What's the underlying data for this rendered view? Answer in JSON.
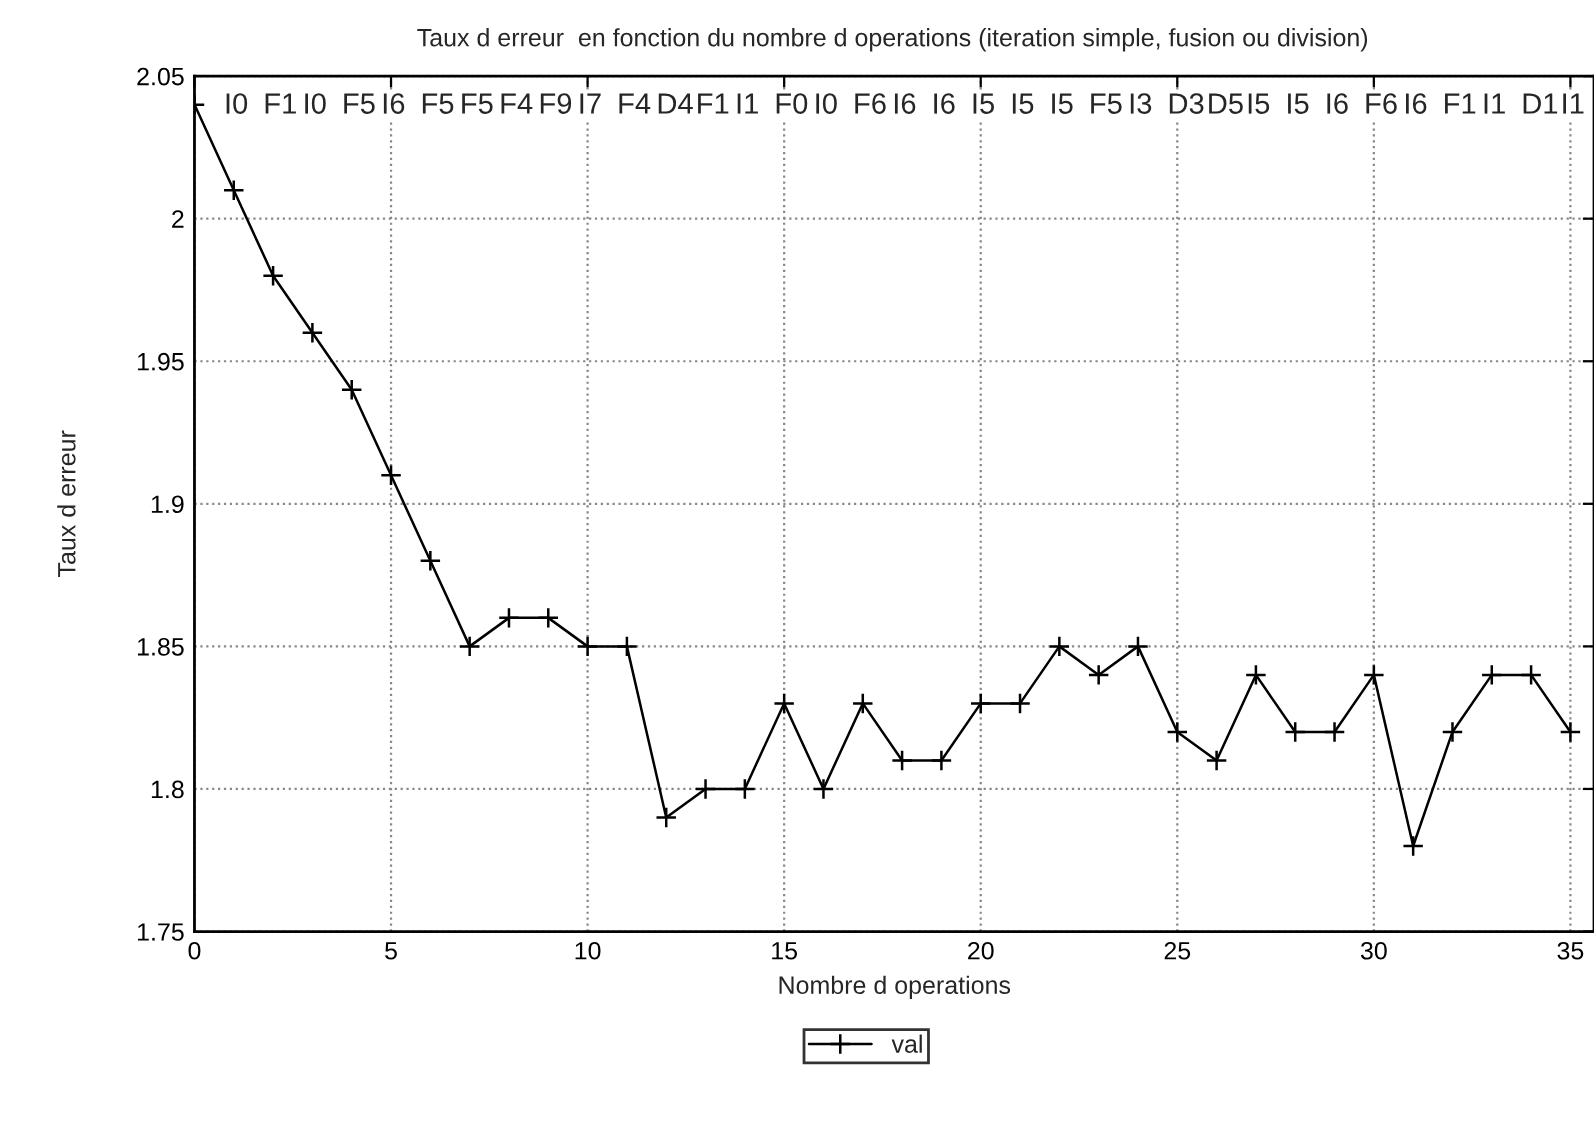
{
  "chart_data": {
    "type": "line",
    "title": "Taux d erreur  en fonction du nombre d operations (iteration simple, fusion ou division)",
    "xlabel": "Nombre d operations",
    "ylabel": "Taux d erreur",
    "x": [
      0,
      1,
      2,
      3,
      4,
      5,
      6,
      7,
      8,
      9,
      10,
      11,
      12,
      13,
      14,
      15,
      16,
      17,
      18,
      19,
      20,
      21,
      22,
      23,
      24,
      25,
      26,
      27,
      28,
      29,
      30,
      31,
      32,
      33,
      34,
      35
    ],
    "series": [
      {
        "name": "val",
        "color": "#000000",
        "values": [
          2.04,
          2.01,
          1.98,
          1.96,
          1.94,
          1.91,
          1.88,
          1.85,
          1.86,
          1.86,
          1.85,
          1.85,
          1.79,
          1.8,
          1.8,
          1.83,
          1.8,
          1.83,
          1.81,
          1.81,
          1.83,
          1.83,
          1.85,
          1.84,
          1.85,
          1.82,
          1.81,
          1.84,
          1.82,
          1.82,
          1.84,
          1.78,
          1.82,
          1.84,
          1.84,
          1.82
        ]
      }
    ],
    "xlim": [
      0,
      35.6
    ],
    "ylim": [
      1.75,
      2.05
    ],
    "xticks": [
      0,
      5,
      10,
      15,
      20,
      25,
      30,
      35
    ],
    "yticks": [
      1.75,
      1.8,
      1.85,
      1.9,
      1.95,
      2,
      2.05
    ],
    "grid": true,
    "legend": "bottom",
    "marker": "cross",
    "line_style": "solid",
    "annotations": [
      "I0",
      "F1",
      "I0",
      "F5",
      "I6",
      "F5",
      "F5",
      "F4",
      "F9",
      "I7",
      "F4",
      "D4",
      "F1",
      "I1",
      "F0",
      "I0",
      "F6",
      "I6",
      "I6",
      "I5",
      "I5",
      "I5",
      "F5",
      "I3",
      "D3",
      "D5",
      "I5",
      "I5",
      "I6",
      "F6",
      "I6",
      "F1",
      "I1",
      "D1",
      "I1"
    ]
  }
}
